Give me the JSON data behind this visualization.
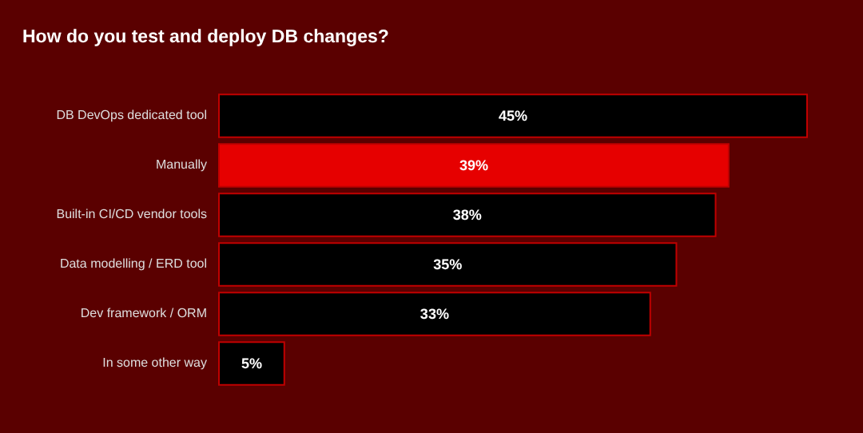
{
  "chart_data": {
    "type": "bar",
    "orientation": "horizontal",
    "title": "How do you test and deploy DB changes?",
    "categories": [
      "DB DevOps dedicated tool",
      "Manually",
      "Built-in CI/CD vendor tools",
      "Data modelling / ERD tool",
      "Dev framework / ORM",
      "In some other way"
    ],
    "values": [
      45,
      39,
      38,
      35,
      33,
      5
    ],
    "value_labels": [
      "45%",
      "39%",
      "38%",
      "35%",
      "33%",
      "5%"
    ],
    "colors": [
      "#000000",
      "#e60000",
      "#000000",
      "#000000",
      "#000000",
      "#000000"
    ]
  }
}
